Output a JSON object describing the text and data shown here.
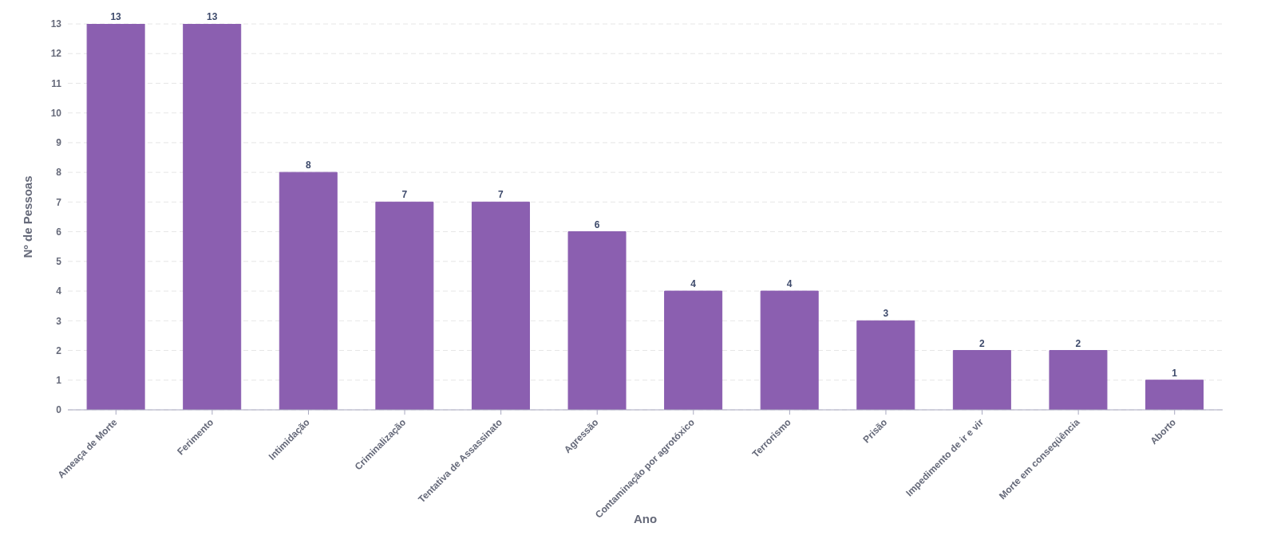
{
  "chart_data": {
    "type": "bar",
    "xlabel": "Ano",
    "ylabel": "Nº de Pessoas",
    "categories": [
      "Ameaça de Morte",
      "Ferimento",
      "Intimidação",
      "Criminalização",
      "Tentativa de Assassinato",
      "Agressão",
      "Contaminação por agrotóxico",
      "Terrorismo",
      "Prisão",
      "Impedimento de ir e vir",
      "Morte em conseqüência",
      "Aborto"
    ],
    "values": [
      13,
      13,
      8,
      7,
      7,
      6,
      4,
      4,
      3,
      2,
      2,
      1
    ],
    "color": "#8b5fb0",
    "ylim": [
      0,
      13
    ],
    "yticks": [
      0,
      1,
      2,
      3,
      4,
      5,
      6,
      7,
      8,
      9,
      10,
      11,
      12,
      13
    ],
    "grid": "y",
    "data_labels": true
  }
}
